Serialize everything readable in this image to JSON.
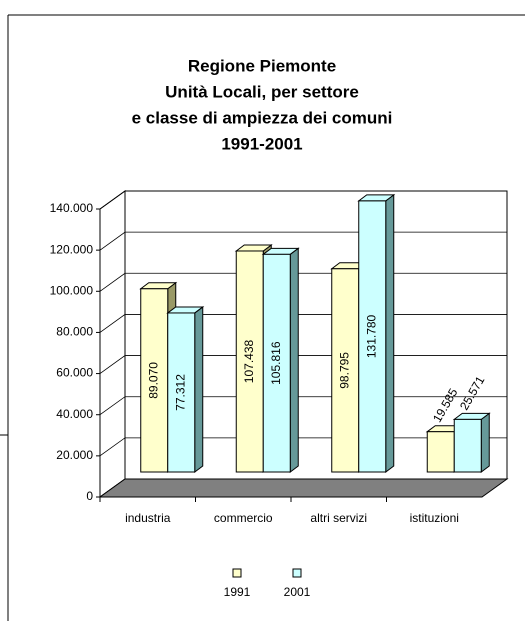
{
  "chart_data": {
    "type": "bar3d",
    "title": [
      "Regione Piemonte",
      "Unità Locali, per settore",
      "e classe di ampiezza dei comuni",
      "1991-2001"
    ],
    "categories": [
      "industria",
      "commercio",
      "altri servizi",
      "istituzioni"
    ],
    "series": [
      {
        "name": "1991",
        "color": "#ffffcc",
        "values": [
          89070,
          107438,
          98795,
          19585
        ],
        "value_labels": [
          "89.070",
          "107.438",
          "98.795",
          "19.585"
        ]
      },
      {
        "name": "2001",
        "color": "#ccffff",
        "values": [
          77312,
          105816,
          131780,
          25571
        ],
        "value_labels": [
          "77.312",
          "105.816",
          "131.780",
          "25.571"
        ]
      }
    ],
    "ylim": [
      0,
      140000
    ],
    "yticks": [
      0,
      {
        "value": 20000,
        "label": "20.000"
      },
      {
        "value": 40000,
        "label": "40.000"
      },
      {
        "value": 60000,
        "label": "60.000"
      },
      {
        "value": 80000,
        "label": "80.000"
      },
      {
        "value": 100000,
        "label": "100.000"
      },
      {
        "value": 120000,
        "label": "120.000"
      },
      {
        "value": 140000,
        "label": "140.000"
      }
    ],
    "grid": true,
    "legend": "bottom"
  }
}
